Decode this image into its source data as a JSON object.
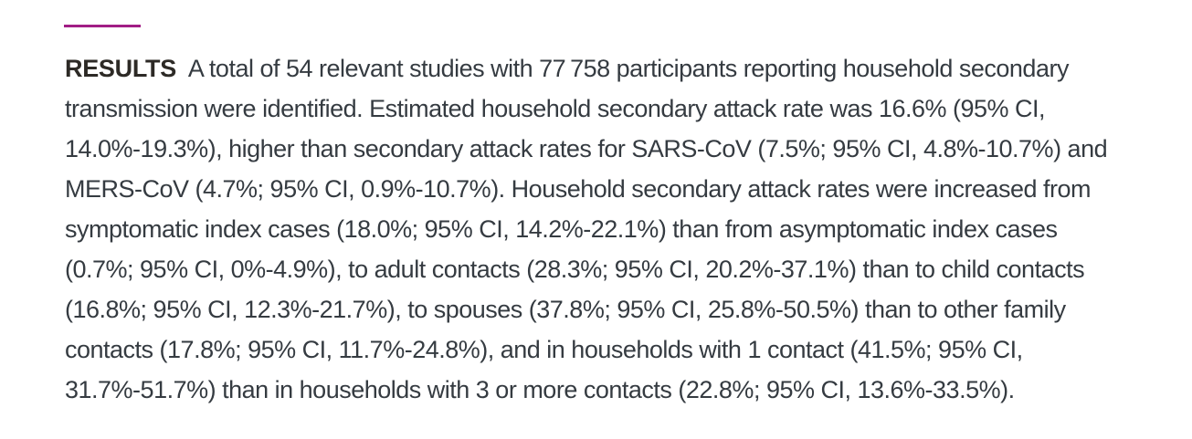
{
  "colors": {
    "background": "#ffffff",
    "accent_rule": "#a11d85",
    "heading_text": "#2d2a26",
    "body_text": "#353b41"
  },
  "abstract": {
    "section_heading": "RESULTS",
    "body": "A total of 54 relevant studies with 77 758 participants reporting household secondary transmission were identified. Estimated household secondary attack rate was 16.6% (95% CI, 14.0%-19.3%), higher than secondary attack rates for SARS-CoV (7.5%; 95% CI, 4.8%-10.7%) and MERS-CoV (4.7%; 95% CI, 0.9%-10.7%). Household secondary attack rates were increased from symptomatic index cases (18.0%; 95% CI, 14.2%-22.1%) than from asymptomatic index cases (0.7%; 95% CI, 0%-4.9%), to adult contacts (28.3%; 95% CI, 20.2%-37.1%) than to child contacts (16.8%; 95% CI, 12.3%-21.7%), to spouses (37.8%; 95% CI, 25.8%-50.5%) than to other family contacts (17.8%; 95% CI, 11.7%-24.8%), and in households with 1 contact (41.5%; 95% CI, 31.7%-51.7%) than in households with 3 or more contacts (22.8%; 95% CI, 13.6%-33.5%)."
  }
}
